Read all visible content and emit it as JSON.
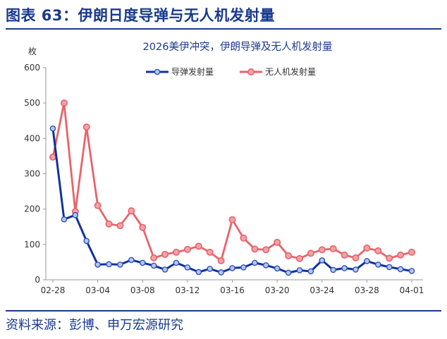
{
  "figure": {
    "title": "图表 63：伊朗日度导弹与无人机发射量",
    "source": "资料来源：彭博、申万宏源研究"
  },
  "chart_data": {
    "type": "line",
    "title": "2026美伊冲突，伊朗导弹及无人机发射量",
    "ylabel": "枚",
    "xlabel": "",
    "ylim": [
      0,
      600
    ],
    "yticks": [
      0,
      100,
      200,
      300,
      400,
      500,
      600
    ],
    "x_tick_labels": [
      "02-28",
      "03-04",
      "03-08",
      "03-12",
      "03-16",
      "03-20",
      "03-24",
      "03-28",
      "04-01"
    ],
    "x": [
      "02-28",
      "03-01",
      "03-02",
      "03-03",
      "03-04",
      "03-05",
      "03-06",
      "03-07",
      "03-08",
      "03-09",
      "03-10",
      "03-11",
      "03-12",
      "03-13",
      "03-14",
      "03-15",
      "03-16",
      "03-17",
      "03-18",
      "03-19",
      "03-20",
      "03-21",
      "03-22",
      "03-23",
      "03-24",
      "03-25",
      "03-26",
      "03-27",
      "03-28",
      "03-29",
      "03-30",
      "03-31",
      "04-01"
    ],
    "grid": false,
    "legend_position": "top-right",
    "series": [
      {
        "name": "导弹发射量",
        "color": "#12329a",
        "values": [
          428,
          171,
          183,
          110,
          43,
          44,
          43,
          56,
          48,
          40,
          29,
          48,
          35,
          22,
          31,
          21,
          33,
          35,
          48,
          41,
          32,
          20,
          27,
          24,
          55,
          28,
          33,
          29,
          53,
          43,
          36,
          30,
          25
        ]
      },
      {
        "name": "无人机发射量",
        "color": "#e8636b",
        "values": [
          347,
          500,
          193,
          432,
          210,
          158,
          153,
          195,
          148,
          62,
          72,
          78,
          86,
          95,
          78,
          54,
          170,
          118,
          87,
          85,
          106,
          68,
          60,
          75,
          85,
          88,
          70,
          62,
          90,
          82,
          61,
          70,
          78
        ]
      }
    ]
  }
}
